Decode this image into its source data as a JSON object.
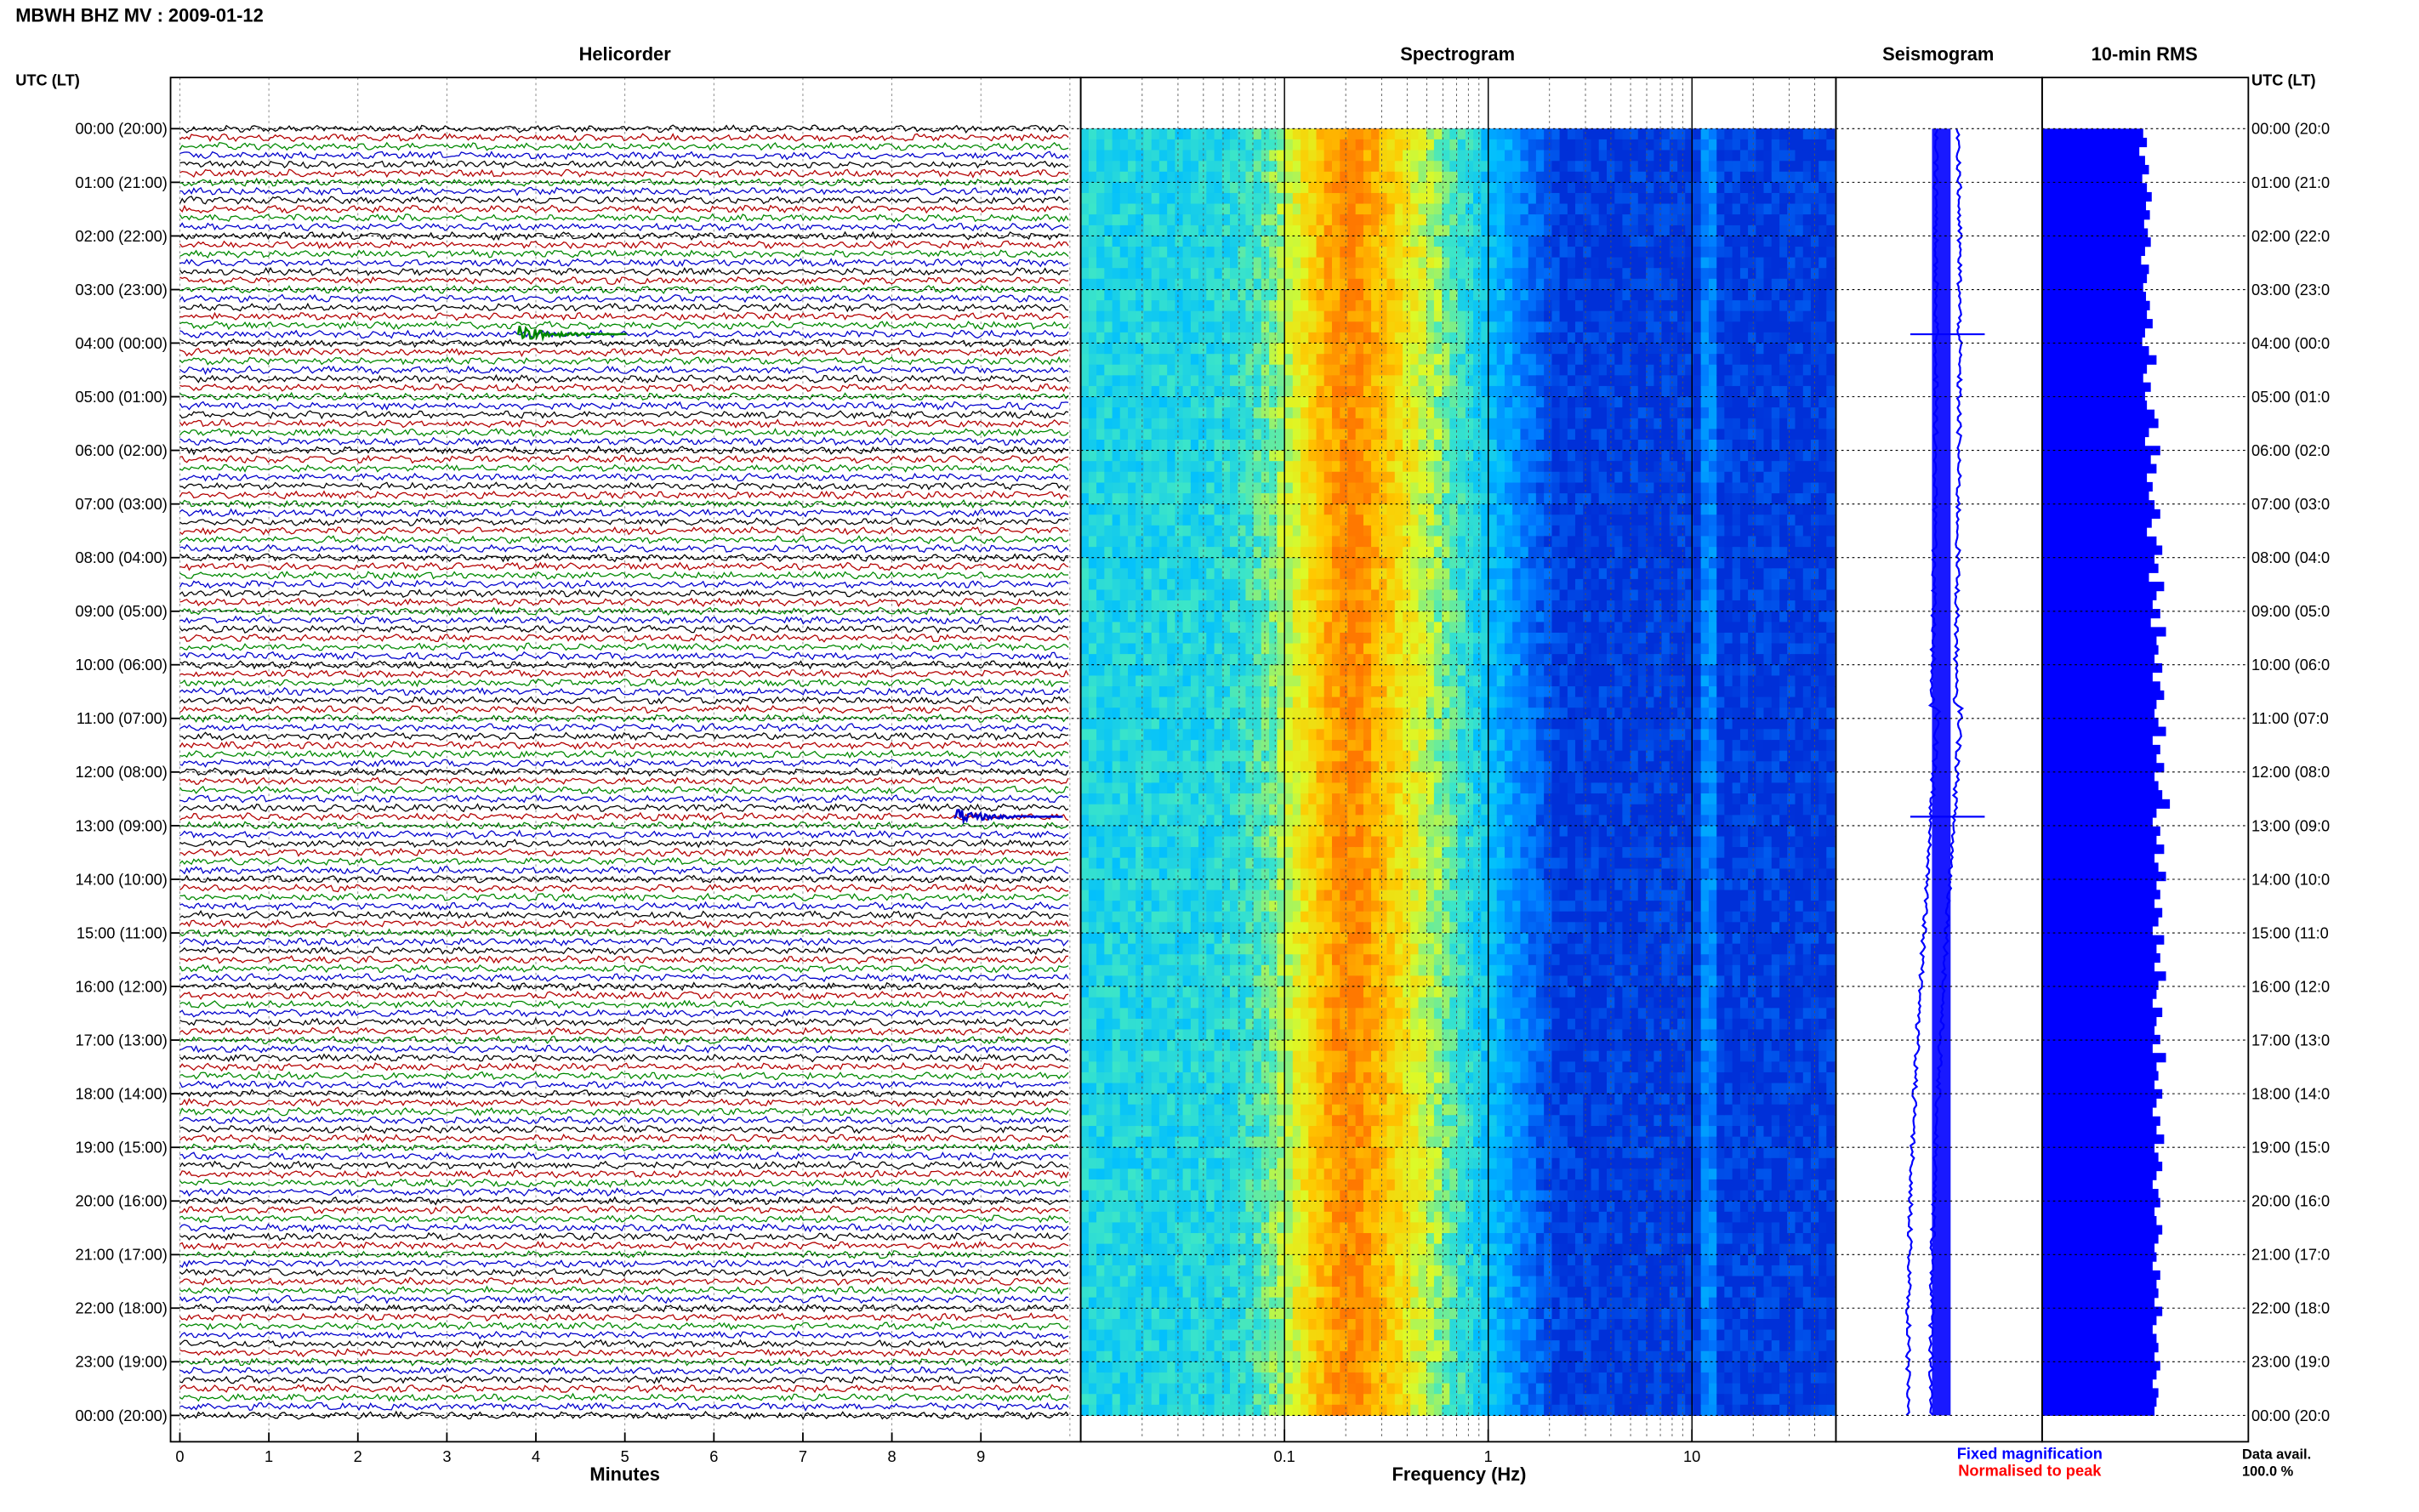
{
  "header": {
    "title": "MBWH BHZ MV : 2009-01-12"
  },
  "chart_data": [
    {
      "type": "line",
      "panel": "Helicorder",
      "title": "Helicorder",
      "xlabel": "Minutes",
      "xticks": [
        "0",
        "1",
        "2",
        "3",
        "4",
        "5",
        "6",
        "7",
        "8",
        "9"
      ],
      "xlim": [
        0,
        10
      ],
      "ylabel": "UTC (LT)",
      "trace_colors": [
        "#000000",
        "#b30000",
        "#008800",
        "#0000cc"
      ],
      "rows_per_hour": 6,
      "events": [
        {
          "time": "03:50",
          "minute": 3.8,
          "color": "#008800"
        },
        {
          "time": "12:50",
          "minute": 8.7,
          "color": "#0000cc"
        }
      ]
    },
    {
      "type": "heatmap",
      "panel": "Spectrogram",
      "title": "Spectrogram",
      "xlabel": "Frequency (Hz)",
      "xscale": "log",
      "xlim": [
        0.01,
        50
      ],
      "xticks": [
        "0.1",
        "1",
        "10"
      ],
      "dominant_band_hz": [
        0.18,
        0.28
      ],
      "colormap": [
        "#0030d8",
        "#00a8ff",
        "#40e0d8",
        "#ffff00",
        "#ff8000"
      ]
    },
    {
      "type": "line",
      "panel": "Seismogram",
      "title": "Seismogram",
      "color": "#0000ff",
      "legend": [
        {
          "label": "Fixed magnification",
          "color": "#0000ff"
        },
        {
          "label": "Normalised to peak",
          "color": "#ff0000"
        }
      ]
    },
    {
      "type": "bar",
      "panel": "RMS",
      "title": "10-min RMS",
      "orientation": "horizontal",
      "color": "#0000ff",
      "footer_label": "Data avail.",
      "footer_value": "100.0 %",
      "values": [
        1.06,
        1.1,
        1.02,
        1.08,
        1.12,
        1.05,
        1.1,
        1.15,
        1.09,
        1.13,
        1.07,
        1.11,
        1.14,
        1.08,
        1.04,
        1.12,
        1.1,
        1.06,
        1.09,
        1.13,
        1.1,
        1.16,
        1.08,
        1.05,
        1.12,
        1.2,
        1.1,
        1.06,
        1.14,
        1.08,
        1.1,
        1.18,
        1.22,
        1.12,
        1.08,
        1.24,
        1.14,
        1.2,
        1.1,
        1.16,
        1.12,
        1.18,
        1.24,
        1.15,
        1.1,
        1.2,
        1.26,
        1.18,
        1.22,
        1.12,
        1.28,
        1.2,
        1.16,
        1.24,
        1.14,
        1.3,
        1.2,
        1.22,
        1.18,
        1.26,
        1.16,
        1.24,
        1.28,
        1.2,
        1.18,
        1.22,
        1.3,
        1.16,
        1.24,
        1.2,
        1.28,
        1.18,
        1.22,
        1.26,
        1.34,
        1.2,
        1.16,
        1.24,
        1.2,
        1.28,
        1.18,
        1.22,
        1.3,
        1.2,
        1.24,
        1.18,
        1.26,
        1.22,
        1.16,
        1.28,
        1.2,
        1.24,
        1.18,
        1.3,
        1.22,
        1.2,
        1.16,
        1.26,
        1.2,
        1.18,
        1.24,
        1.16,
        1.3,
        1.2,
        1.22,
        1.18,
        1.26,
        1.2,
        1.16,
        1.24,
        1.2,
        1.28,
        1.18,
        1.22,
        1.26,
        1.2,
        1.16,
        1.22,
        1.24,
        1.18,
        1.2,
        1.26,
        1.22,
        1.18,
        1.2,
        1.16,
        1.24,
        1.2,
        1.22,
        1.18,
        1.26,
        1.2,
        1.16,
        1.2,
        1.22,
        1.18,
        1.24,
        1.2,
        1.16,
        1.22,
        1.2,
        1.18
      ]
    }
  ],
  "axes": {
    "left_header": "UTC (LT)",
    "right_header": "UTC (LT)",
    "left_labels": [
      "00:00 (20:00)",
      "01:00 (21:00)",
      "02:00 (22:00)",
      "03:00 (23:00)",
      "04:00 (00:00)",
      "05:00 (01:00)",
      "06:00 (02:00)",
      "07:00 (03:00)",
      "08:00 (04:00)",
      "09:00 (05:00)",
      "10:00 (06:00)",
      "11:00 (07:00)",
      "12:00 (08:00)",
      "13:00 (09:00)",
      "14:00 (10:00)",
      "15:00 (11:00)",
      "16:00 (12:00)",
      "17:00 (13:00)",
      "18:00 (14:00)",
      "19:00 (15:00)",
      "20:00 (16:00)",
      "21:00 (17:00)",
      "22:00 (18:00)",
      "23:00 (19:00)",
      "00:00 (20:00)"
    ],
    "right_labels": [
      "00:00 (20:0",
      "01:00 (21:0",
      "02:00 (22:0",
      "03:00 (23:0",
      "04:00 (00:0",
      "05:00 (01:0",
      "06:00 (02:0",
      "07:00 (03:0",
      "08:00 (04:0",
      "09:00 (05:0",
      "10:00 (06:0",
      "11:00 (07:0",
      "12:00 (08:0",
      "13:00 (09:0",
      "14:00 (10:0",
      "15:00 (11:0",
      "16:00 (12:0",
      "17:00 (13:0",
      "18:00 (14:0",
      "19:00 (15:0",
      "20:00 (16:0",
      "21:00 (17:0",
      "22:00 (18:0",
      "23:00 (19:0",
      "00:00 (20:0"
    ]
  }
}
